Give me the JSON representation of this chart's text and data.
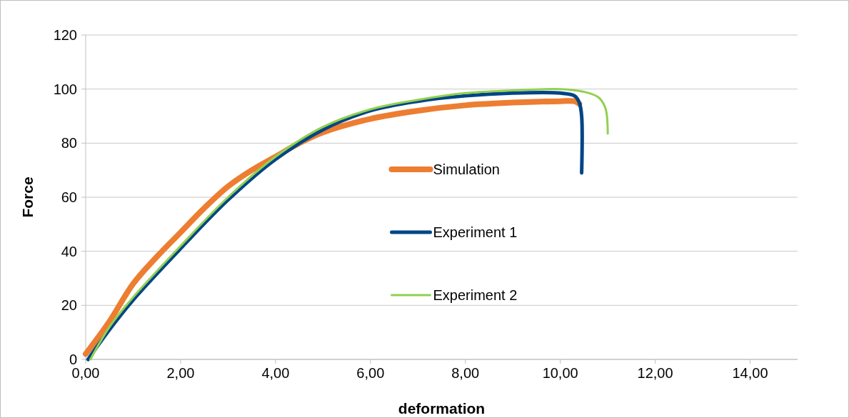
{
  "chart_data": {
    "type": "line",
    "xlabel": "deformation",
    "ylabel": "Force",
    "xlim": [
      0,
      15
    ],
    "xticks": [
      {
        "value": 0,
        "label": "0,00"
      },
      {
        "value": 2,
        "label": "2,00"
      },
      {
        "value": 4,
        "label": "4,00"
      },
      {
        "value": 6,
        "label": "6,00"
      },
      {
        "value": 8,
        "label": "8,00"
      },
      {
        "value": 10,
        "label": "10,00"
      },
      {
        "value": 12,
        "label": "12,00"
      },
      {
        "value": 14,
        "label": "14,00"
      }
    ],
    "ylim": [
      0,
      120
    ],
    "yticks": [
      0,
      20,
      40,
      60,
      80,
      100,
      120
    ],
    "grid": "y",
    "legend": "center",
    "marker": "none",
    "line_style": "solid",
    "series": [
      {
        "name": "Simulation",
        "color": "#ed7d31",
        "x": [
          0,
          0.5,
          1,
          1.5,
          2,
          2.5,
          3,
          3.5,
          4,
          4.5,
          5,
          6,
          7,
          8,
          9,
          10,
          10.3,
          10.4
        ],
        "values": [
          2,
          14,
          28,
          38,
          47,
          56,
          64,
          70,
          75,
          80,
          84,
          89,
          92,
          94,
          95,
          95.5,
          95.5,
          94.5
        ]
      },
      {
        "name": "Experiment 1",
        "color": "#004586",
        "x": [
          0.05,
          0.5,
          1,
          2,
          3,
          4,
          5,
          6,
          7,
          8,
          9,
          10,
          10.3,
          10.4,
          10.45,
          10.45
        ],
        "values": [
          0,
          11,
          22,
          41,
          59,
          74,
          85,
          92,
          95.5,
          97.5,
          98.5,
          98.5,
          97.5,
          95,
          90,
          69
        ]
      },
      {
        "name": "Experiment 2",
        "color": "#92d050",
        "x": [
          0.1,
          0.5,
          1,
          2,
          3,
          4,
          5,
          6,
          7,
          8,
          9,
          10,
          10.5,
          10.8,
          10.95,
          11
        ],
        "values": [
          0,
          12,
          23,
          42,
          60,
          75,
          86,
          92.5,
          96,
          98.5,
          99.5,
          100,
          99,
          97,
          93,
          83.5
        ]
      }
    ]
  }
}
